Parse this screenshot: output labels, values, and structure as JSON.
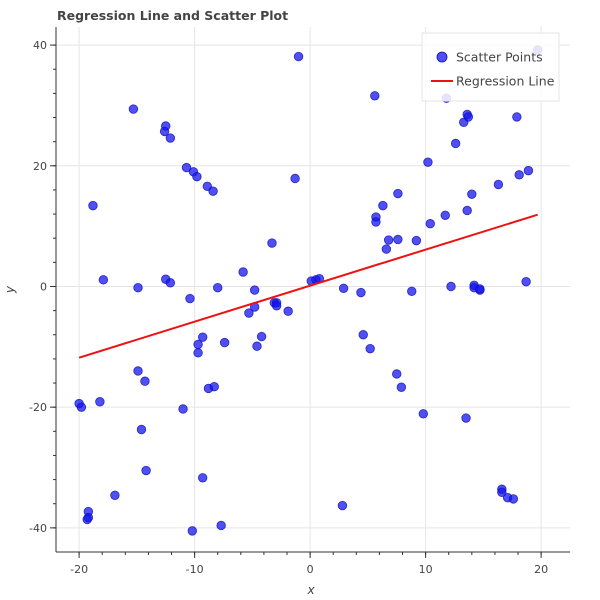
{
  "chart_data": {
    "type": "scatter",
    "title": "Regression Line and Scatter Plot",
    "xlabel": "x",
    "ylabel": "y",
    "xlim": [
      -22,
      22.5
    ],
    "ylim": [
      -44,
      43
    ],
    "xticks": [
      -20,
      -10,
      0,
      10,
      20
    ],
    "yticks": [
      -40,
      -20,
      0,
      20,
      40
    ],
    "grid": true,
    "legend_position": "top-right",
    "colors": {
      "scatter": "#1414ee",
      "regression": "#ee1111"
    },
    "series": [
      {
        "name": "Scatter Points",
        "type": "scatter",
        "points": [
          [
            -20,
            -19.4
          ],
          [
            -19.8,
            -20
          ],
          [
            -19.2,
            -37.3
          ],
          [
            -19.2,
            -38.3
          ],
          [
            -19.3,
            -38.6
          ],
          [
            -18.8,
            13.4
          ],
          [
            -18.2,
            -19.1
          ],
          [
            -17.9,
            1.1
          ],
          [
            -16.9,
            -34.6
          ],
          [
            -15.3,
            29.4
          ],
          [
            -14.9,
            -0.2
          ],
          [
            -14.9,
            -14
          ],
          [
            -14.6,
            -23.7
          ],
          [
            -14.3,
            -15.7
          ],
          [
            -14.2,
            -30.5
          ],
          [
            -12.5,
            26.6
          ],
          [
            -12.6,
            25.7
          ],
          [
            -12.5,
            1.2
          ],
          [
            -12.1,
            24.6
          ],
          [
            -12.1,
            0.6
          ],
          [
            -11,
            -20.3
          ],
          [
            -10.7,
            19.7
          ],
          [
            -10.4,
            -2
          ],
          [
            -10.2,
            -40.5
          ],
          [
            -10.1,
            19
          ],
          [
            -9.8,
            18.2
          ],
          [
            -9.7,
            -9.6
          ],
          [
            -9.7,
            -11
          ],
          [
            -9.3,
            -8.4
          ],
          [
            -9.3,
            -31.7
          ],
          [
            -8.9,
            16.6
          ],
          [
            -8.8,
            -16.9
          ],
          [
            -8.4,
            15.8
          ],
          [
            -8.3,
            -16.6
          ],
          [
            -8.0,
            -0.2
          ],
          [
            -7.7,
            -39.6
          ],
          [
            -7.4,
            -9.3
          ],
          [
            -5.8,
            2.4
          ],
          [
            -5.3,
            -4.4
          ],
          [
            -4.8,
            -0.6
          ],
          [
            -4.8,
            -3.4
          ],
          [
            -4.6,
            -9.9
          ],
          [
            -4.2,
            -8.3
          ],
          [
            -3.3,
            7.2
          ],
          [
            -3.1,
            -2.7
          ],
          [
            -2.9,
            -2.7
          ],
          [
            -2.9,
            -3.2
          ],
          [
            -1.9,
            -4.1
          ],
          [
            -1.3,
            17.9
          ],
          [
            -1.0,
            38.1
          ],
          [
            0.1,
            0.9
          ],
          [
            0.5,
            1.1
          ],
          [
            0.8,
            1.3
          ],
          [
            2.9,
            -0.3
          ],
          [
            2.8,
            -36.3
          ],
          [
            4.4,
            -1
          ],
          [
            4.6,
            -8
          ],
          [
            5.2,
            -10.3
          ],
          [
            5.6,
            31.6
          ],
          [
            5.7,
            11.5
          ],
          [
            5.7,
            10.7
          ],
          [
            6.3,
            13.4
          ],
          [
            6.6,
            6.2
          ],
          [
            6.8,
            7.7
          ],
          [
            7.5,
            -14.5
          ],
          [
            7.6,
            7.8
          ],
          [
            7.6,
            15.4
          ],
          [
            7.9,
            -16.7
          ],
          [
            8.8,
            -0.8
          ],
          [
            9.2,
            7.6
          ],
          [
            9.8,
            -21.1
          ],
          [
            10.2,
            20.6
          ],
          [
            10.4,
            10.4
          ],
          [
            11.7,
            11.8
          ],
          [
            11.8,
            31.2
          ],
          [
            12.2,
            0
          ],
          [
            12.6,
            23.7
          ],
          [
            13.3,
            27.2
          ],
          [
            13.6,
            28.5
          ],
          [
            13.7,
            28.1
          ],
          [
            13.6,
            12.6
          ],
          [
            13.5,
            -21.8
          ],
          [
            14,
            15.3
          ],
          [
            14.2,
            0.2
          ],
          [
            14.2,
            -0.2
          ],
          [
            14.7,
            -0.6
          ],
          [
            14.7,
            -0.4
          ],
          [
            16.3,
            16.9
          ],
          [
            16.6,
            -33.6
          ],
          [
            16.6,
            -34.1
          ],
          [
            17.1,
            -35
          ],
          [
            17.6,
            -35.2
          ],
          [
            17.9,
            28.1
          ],
          [
            18.1,
            18.5
          ],
          [
            18.7,
            0.8
          ],
          [
            18.9,
            19.2
          ],
          [
            19.7,
            39.2
          ]
        ]
      },
      {
        "name": "Regression Line",
        "type": "line",
        "points": [
          [
            -20,
            -11.8
          ],
          [
            19.7,
            11.9
          ]
        ]
      }
    ]
  }
}
